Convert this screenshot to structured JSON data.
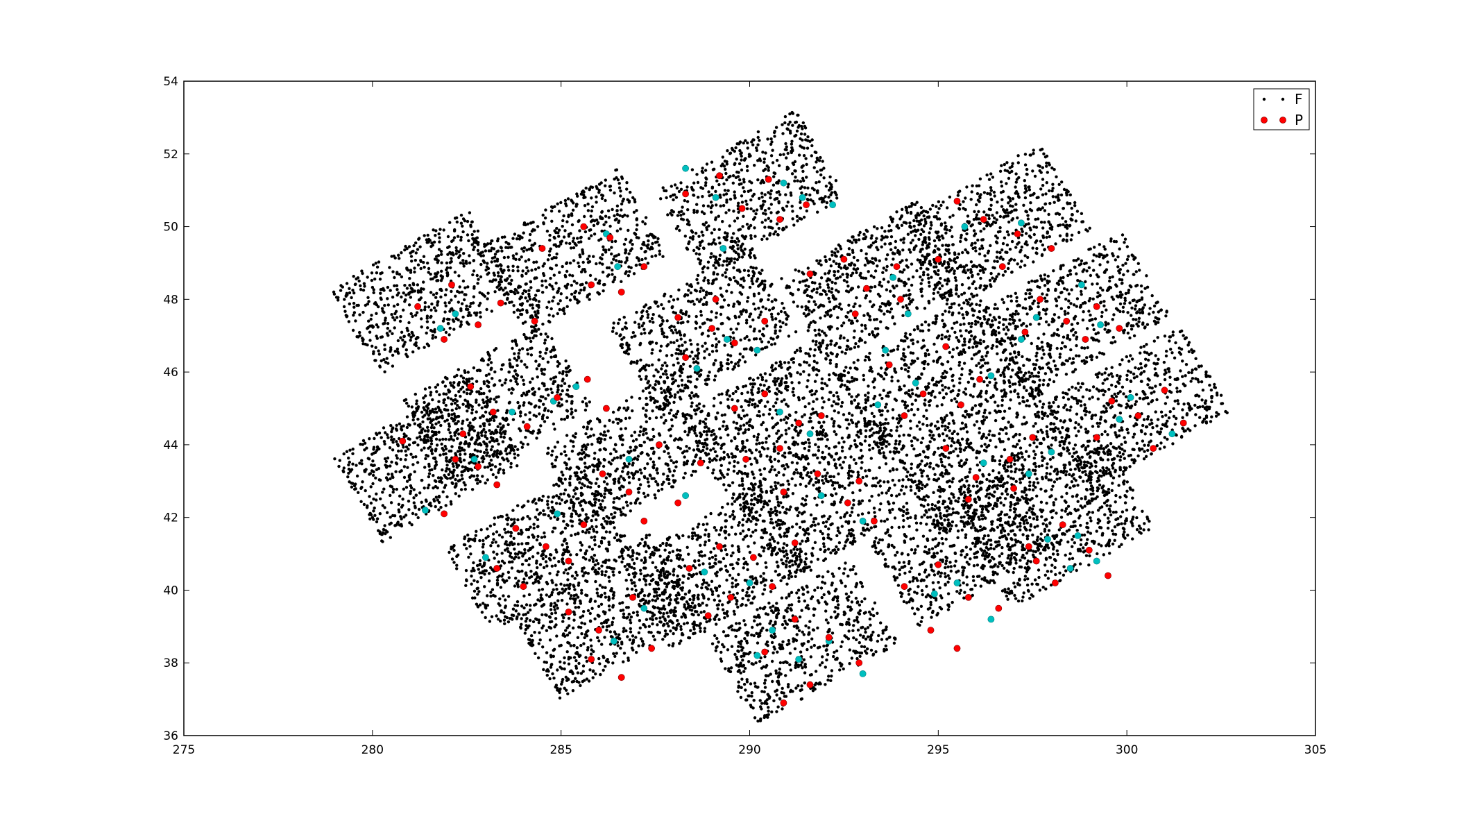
{
  "chart_data": {
    "type": "scatter",
    "title": "",
    "xlabel": "",
    "ylabel": "",
    "xlim": [
      275,
      305
    ],
    "ylim": [
      36,
      54
    ],
    "x_ticks": [
      275,
      280,
      285,
      290,
      295,
      300,
      305
    ],
    "y_ticks": [
      36,
      38,
      40,
      42,
      44,
      46,
      48,
      50,
      52,
      54
    ],
    "grid": false,
    "legend_position": "top-right",
    "colors": {
      "F": "#000000",
      "P": "#ff0000",
      "other": "#00bfbf"
    },
    "legend": [
      {
        "label": "F",
        "marker": "small-dot",
        "color": "#000000"
      },
      {
        "label": "P",
        "marker": "circle",
        "color": "#ff0000"
      }
    ],
    "series": [
      {
        "name": "F",
        "description_of_extent": "dense points filling 21 tilted rectangular modules (each split by a thin gap)",
        "modules": [
          {
            "ra_center": 281.4,
            "dec_center": 48.2
          },
          {
            "ra_center": 285.3,
            "dec_center": 49.3
          },
          {
            "ra_center": 290.0,
            "dec_center": 50.9
          },
          {
            "ra_center": 283.3,
            "dec_center": 45.1
          },
          {
            "ra_center": 288.8,
            "dec_center": 47.2
          },
          {
            "ra_center": 293.3,
            "dec_center": 48.5
          },
          {
            "ra_center": 296.5,
            "dec_center": 50.0
          },
          {
            "ra_center": 281.5,
            "dec_center": 43.6
          },
          {
            "ra_center": 287.0,
            "dec_center": 43.8
          },
          {
            "ra_center": 290.7,
            "dec_center": 44.7
          },
          {
            "ra_center": 294.8,
            "dec_center": 45.9
          },
          {
            "ra_center": 298.6,
            "dec_center": 47.6
          },
          {
            "ra_center": 284.4,
            "dec_center": 41.1
          },
          {
            "ra_center": 292.2,
            "dec_center": 42.5
          },
          {
            "ra_center": 296.3,
            "dec_center": 43.7
          },
          {
            "ra_center": 300.2,
            "dec_center": 45.0
          },
          {
            "ra_center": 286.2,
            "dec_center": 39.3
          },
          {
            "ra_center": 289.1,
            "dec_center": 40.6
          },
          {
            "ra_center": 295.7,
            "dec_center": 41.3
          },
          {
            "ra_center": 298.2,
            "dec_center": 41.8
          },
          {
            "ra_center": 291.4,
            "dec_center": 38.6
          }
        ]
      },
      {
        "name": "P",
        "points": [
          [
            281.2,
            47.8
          ],
          [
            282.1,
            48.4
          ],
          [
            282.8,
            47.3
          ],
          [
            283.4,
            47.9
          ],
          [
            281.9,
            46.9
          ],
          [
            284.3,
            47.4
          ],
          [
            284.5,
            49.4
          ],
          [
            285.6,
            50.0
          ],
          [
            286.3,
            49.7
          ],
          [
            287.2,
            48.9
          ],
          [
            285.8,
            48.4
          ],
          [
            286.6,
            48.2
          ],
          [
            288.3,
            50.9
          ],
          [
            289.2,
            51.4
          ],
          [
            290.5,
            51.3
          ],
          [
            289.8,
            50.5
          ],
          [
            290.8,
            50.2
          ],
          [
            291.5,
            50.6
          ],
          [
            295.5,
            50.7
          ],
          [
            296.2,
            50.2
          ],
          [
            297.1,
            49.8
          ],
          [
            296.7,
            48.9
          ],
          [
            298.0,
            49.4
          ],
          [
            295.0,
            49.1
          ],
          [
            282.6,
            45.6
          ],
          [
            283.2,
            44.9
          ],
          [
            284.1,
            44.5
          ],
          [
            284.9,
            45.3
          ],
          [
            285.7,
            45.8
          ],
          [
            286.2,
            45.0
          ],
          [
            288.1,
            47.5
          ],
          [
            289.0,
            47.2
          ],
          [
            289.6,
            46.8
          ],
          [
            288.3,
            46.4
          ],
          [
            290.4,
            47.4
          ],
          [
            289.1,
            48.0
          ],
          [
            291.6,
            48.7
          ],
          [
            292.5,
            49.1
          ],
          [
            293.1,
            48.3
          ],
          [
            294.0,
            48.0
          ],
          [
            292.8,
            47.6
          ],
          [
            293.9,
            48.9
          ],
          [
            297.7,
            48.0
          ],
          [
            298.4,
            47.4
          ],
          [
            299.2,
            47.8
          ],
          [
            298.9,
            46.9
          ],
          [
            297.3,
            47.1
          ],
          [
            299.8,
            47.2
          ],
          [
            280.8,
            44.1
          ],
          [
            282.4,
            44.3
          ],
          [
            282.8,
            43.4
          ],
          [
            283.3,
            42.9
          ],
          [
            281.9,
            42.1
          ],
          [
            282.2,
            43.6
          ],
          [
            286.1,
            43.2
          ],
          [
            286.8,
            42.7
          ],
          [
            287.6,
            44.0
          ],
          [
            288.1,
            42.4
          ],
          [
            288.7,
            43.5
          ],
          [
            287.2,
            41.9
          ],
          [
            289.6,
            45.0
          ],
          [
            290.4,
            45.4
          ],
          [
            291.3,
            44.6
          ],
          [
            290.8,
            43.9
          ],
          [
            289.9,
            43.6
          ],
          [
            291.9,
            44.8
          ],
          [
            293.7,
            46.2
          ],
          [
            294.6,
            45.4
          ],
          [
            295.2,
            46.7
          ],
          [
            295.6,
            45.1
          ],
          [
            296.1,
            45.8
          ],
          [
            294.1,
            44.8
          ],
          [
            283.8,
            41.7
          ],
          [
            284.6,
            41.2
          ],
          [
            285.2,
            40.8
          ],
          [
            284.0,
            40.1
          ],
          [
            285.6,
            41.8
          ],
          [
            283.3,
            40.6
          ],
          [
            290.9,
            42.7
          ],
          [
            291.8,
            43.2
          ],
          [
            292.6,
            42.4
          ],
          [
            293.3,
            41.9
          ],
          [
            291.2,
            41.3
          ],
          [
            292.9,
            43.0
          ],
          [
            295.2,
            43.9
          ],
          [
            296.0,
            43.1
          ],
          [
            296.9,
            43.6
          ],
          [
            297.5,
            44.2
          ],
          [
            295.8,
            42.5
          ],
          [
            297.0,
            42.8
          ],
          [
            299.6,
            45.2
          ],
          [
            300.3,
            44.8
          ],
          [
            301.0,
            45.5
          ],
          [
            299.2,
            44.2
          ],
          [
            300.7,
            43.9
          ],
          [
            301.5,
            44.6
          ],
          [
            285.2,
            39.4
          ],
          [
            286.0,
            38.9
          ],
          [
            286.9,
            39.8
          ],
          [
            287.4,
            38.4
          ],
          [
            285.8,
            38.1
          ],
          [
            286.6,
            37.6
          ],
          [
            288.4,
            40.6
          ],
          [
            289.2,
            41.2
          ],
          [
            290.1,
            40.9
          ],
          [
            290.6,
            40.1
          ],
          [
            289.5,
            39.8
          ],
          [
            288.9,
            39.3
          ],
          [
            291.2,
            39.2
          ],
          [
            292.1,
            38.7
          ],
          [
            290.4,
            38.3
          ],
          [
            291.6,
            37.4
          ],
          [
            292.9,
            38.0
          ],
          [
            290.9,
            36.9
          ],
          [
            294.1,
            40.1
          ],
          [
            295.0,
            40.7
          ],
          [
            295.8,
            39.8
          ],
          [
            296.6,
            39.5
          ],
          [
            294.8,
            38.9
          ],
          [
            295.5,
            38.4
          ],
          [
            297.4,
            41.2
          ],
          [
            298.3,
            41.8
          ],
          [
            299.0,
            41.1
          ],
          [
            299.5,
            40.4
          ],
          [
            298.1,
            40.2
          ],
          [
            297.6,
            40.8
          ]
        ]
      },
      {
        "name": "",
        "points": [
          [
            282.2,
            47.6
          ],
          [
            281.8,
            47.2
          ],
          [
            286.2,
            49.8
          ],
          [
            286.5,
            48.9
          ],
          [
            288.3,
            51.6
          ],
          [
            289.1,
            50.8
          ],
          [
            290.9,
            51.2
          ],
          [
            291.4,
            50.8
          ],
          [
            289.3,
            49.4
          ],
          [
            292.2,
            50.6
          ],
          [
            295.7,
            50.0
          ],
          [
            297.2,
            50.1
          ],
          [
            284.8,
            45.2
          ],
          [
            285.4,
            45.6
          ],
          [
            283.7,
            44.9
          ],
          [
            289.4,
            46.9
          ],
          [
            290.2,
            46.6
          ],
          [
            288.6,
            46.1
          ],
          [
            293.8,
            48.6
          ],
          [
            294.2,
            47.6
          ],
          [
            297.2,
            46.9
          ],
          [
            297.6,
            47.5
          ],
          [
            298.8,
            48.4
          ],
          [
            299.3,
            47.3
          ],
          [
            281.4,
            42.2
          ],
          [
            282.7,
            43.6
          ],
          [
            286.8,
            43.6
          ],
          [
            288.3,
            42.6
          ],
          [
            290.8,
            44.9
          ],
          [
            291.6,
            44.3
          ],
          [
            293.6,
            46.6
          ],
          [
            294.4,
            45.7
          ],
          [
            296.4,
            45.9
          ],
          [
            293.4,
            45.1
          ],
          [
            283.0,
            40.9
          ],
          [
            284.9,
            42.1
          ],
          [
            293.0,
            41.9
          ],
          [
            291.9,
            42.6
          ],
          [
            296.2,
            43.5
          ],
          [
            297.4,
            43.2
          ],
          [
            298.0,
            43.8
          ],
          [
            299.8,
            44.7
          ],
          [
            300.1,
            45.3
          ],
          [
            301.2,
            44.3
          ],
          [
            287.2,
            39.5
          ],
          [
            286.4,
            38.6
          ],
          [
            288.8,
            40.5
          ],
          [
            290.0,
            40.2
          ],
          [
            290.6,
            38.9
          ],
          [
            291.3,
            38.1
          ],
          [
            290.2,
            38.2
          ],
          [
            292.1,
            38.6
          ],
          [
            293.0,
            37.7
          ],
          [
            294.9,
            39.9
          ],
          [
            295.5,
            40.2
          ],
          [
            296.4,
            39.2
          ],
          [
            298.7,
            41.5
          ],
          [
            299.2,
            40.8
          ],
          [
            298.5,
            40.6
          ],
          [
            297.9,
            41.4
          ]
        ]
      }
    ]
  }
}
